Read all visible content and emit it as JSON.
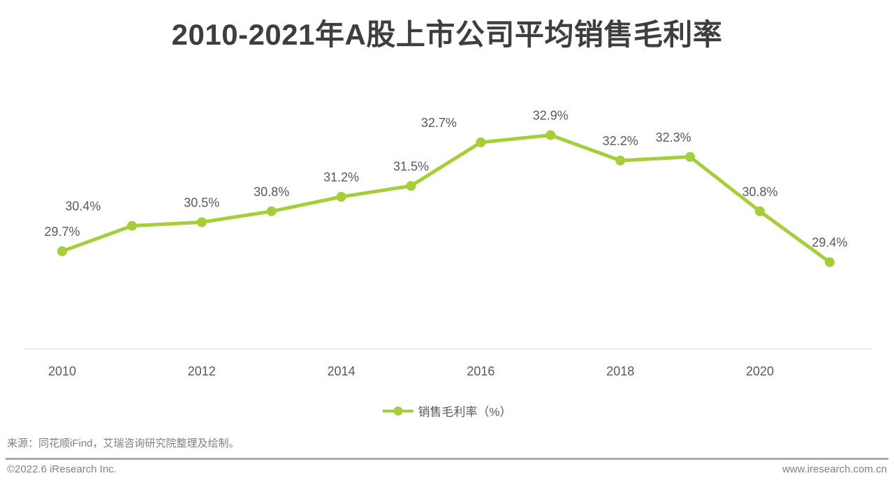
{
  "title": "2010-2021年A股上市公司平均销售毛利率",
  "chart_data": {
    "type": "line",
    "x": [
      2010,
      2011,
      2012,
      2013,
      2014,
      2015,
      2016,
      2017,
      2018,
      2019,
      2020,
      2021
    ],
    "x_tick_labels": [
      "2010",
      "2012",
      "2014",
      "2016",
      "2018",
      "2020"
    ],
    "series": [
      {
        "name": "销售毛利率（%）",
        "values": [
          29.7,
          30.4,
          30.5,
          30.8,
          31.2,
          31.5,
          32.7,
          32.9,
          32.2,
          32.3,
          30.8,
          29.4
        ]
      }
    ],
    "point_labels": [
      "29.7%",
      "30.4%",
      "30.5%",
      "30.8%",
      "31.2%",
      "31.5%",
      "32.7%",
      "32.9%",
      "32.2%",
      "32.3%",
      "30.8%",
      "29.4%"
    ],
    "title": "2010-2021年A股上市公司平均销售毛利率",
    "xlabel": "",
    "ylabel": "",
    "ylim": [
      27.0,
      35.0
    ],
    "grid": false,
    "legend_position": "bottom",
    "line_color": "#A5CE39",
    "label_color": "#595959",
    "axis_color": "#D9D9D9",
    "label_offsets_x": [
      0,
      -70,
      0,
      0,
      0,
      0,
      -60,
      0,
      0,
      -24,
      0,
      0
    ]
  },
  "legend": {
    "swatch": "line-with-dot",
    "label": "销售毛利率（%）"
  },
  "source_note": "来源：同花顺iFind，艾瑞咨询研究院整理及绘制。",
  "footer": {
    "left": "©2022.6 iResearch Inc.",
    "right": "www.iresearch.com.cn"
  }
}
